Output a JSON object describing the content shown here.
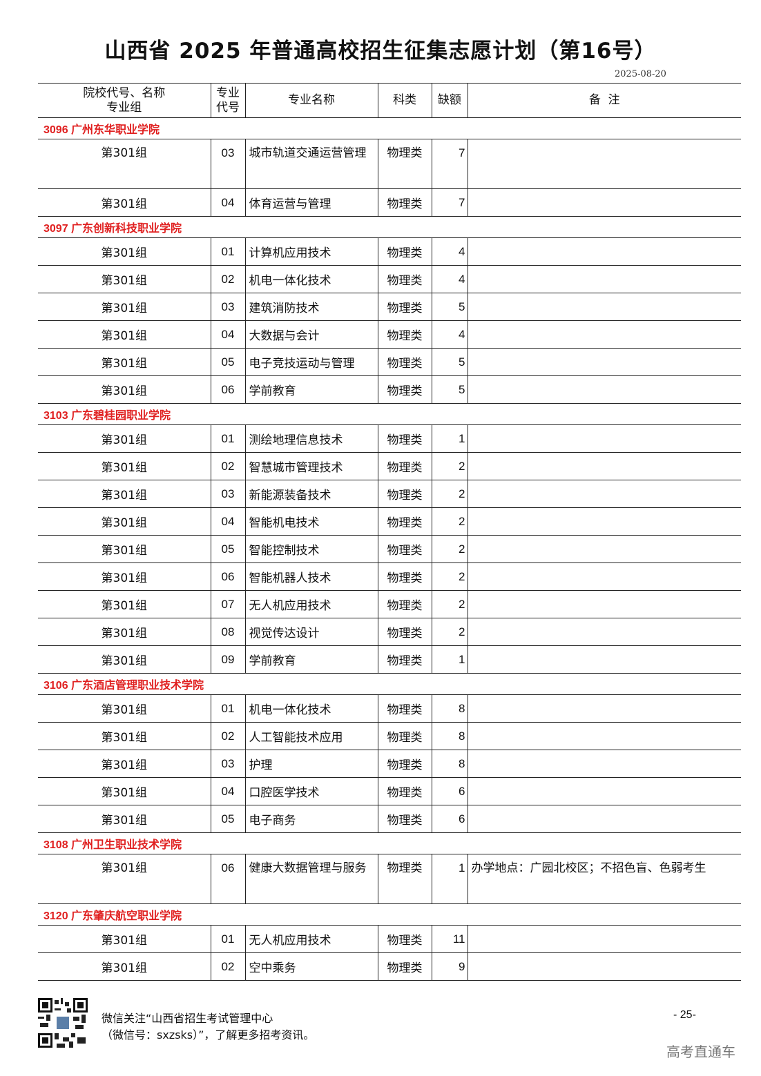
{
  "title": "山西省 2025 年普通高校招生征集志愿计划（第16号）",
  "date": "2025-08-20",
  "headers": {
    "group": "院校代号、名称",
    "group2": "专业组",
    "code": "专业",
    "code2": "代号",
    "name": "专业名称",
    "type": "科类",
    "count": "缺额",
    "note": "备  注"
  },
  "schools": [
    {
      "label": "3096  广州东华职业学院",
      "rows": [
        {
          "group": "第301组",
          "code": "03",
          "name": "城市轨道交通运营管理",
          "type": "物理类",
          "count": "7",
          "note": "",
          "tall": true
        },
        {
          "group": "第301组",
          "code": "04",
          "name": "体育运营与管理",
          "type": "物理类",
          "count": "7",
          "note": ""
        }
      ]
    },
    {
      "label": "3097  广东创新科技职业学院",
      "rows": [
        {
          "group": "第301组",
          "code": "01",
          "name": "计算机应用技术",
          "type": "物理类",
          "count": "4",
          "note": ""
        },
        {
          "group": "第301组",
          "code": "02",
          "name": "机电一体化技术",
          "type": "物理类",
          "count": "4",
          "note": ""
        },
        {
          "group": "第301组",
          "code": "03",
          "name": "建筑消防技术",
          "type": "物理类",
          "count": "5",
          "note": ""
        },
        {
          "group": "第301组",
          "code": "04",
          "name": "大数据与会计",
          "type": "物理类",
          "count": "4",
          "note": ""
        },
        {
          "group": "第301组",
          "code": "05",
          "name": "电子竞技运动与管理",
          "type": "物理类",
          "count": "5",
          "note": ""
        },
        {
          "group": "第301组",
          "code": "06",
          "name": "学前教育",
          "type": "物理类",
          "count": "5",
          "note": ""
        }
      ]
    },
    {
      "label": "3103  广东碧桂园职业学院",
      "rows": [
        {
          "group": "第301组",
          "code": "01",
          "name": "测绘地理信息技术",
          "type": "物理类",
          "count": "1",
          "note": ""
        },
        {
          "group": "第301组",
          "code": "02",
          "name": "智慧城市管理技术",
          "type": "物理类",
          "count": "2",
          "note": ""
        },
        {
          "group": "第301组",
          "code": "03",
          "name": "新能源装备技术",
          "type": "物理类",
          "count": "2",
          "note": ""
        },
        {
          "group": "第301组",
          "code": "04",
          "name": "智能机电技术",
          "type": "物理类",
          "count": "2",
          "note": ""
        },
        {
          "group": "第301组",
          "code": "05",
          "name": "智能控制技术",
          "type": "物理类",
          "count": "2",
          "note": ""
        },
        {
          "group": "第301组",
          "code": "06",
          "name": "智能机器人技术",
          "type": "物理类",
          "count": "2",
          "note": ""
        },
        {
          "group": "第301组",
          "code": "07",
          "name": "无人机应用技术",
          "type": "物理类",
          "count": "2",
          "note": ""
        },
        {
          "group": "第301组",
          "code": "08",
          "name": "视觉传达设计",
          "type": "物理类",
          "count": "2",
          "note": ""
        },
        {
          "group": "第301组",
          "code": "09",
          "name": "学前教育",
          "type": "物理类",
          "count": "1",
          "note": ""
        }
      ]
    },
    {
      "label": "3106  广东酒店管理职业技术学院",
      "rows": [
        {
          "group": "第301组",
          "code": "01",
          "name": "机电一体化技术",
          "type": "物理类",
          "count": "8",
          "note": ""
        },
        {
          "group": "第301组",
          "code": "02",
          "name": "人工智能技术应用",
          "type": "物理类",
          "count": "8",
          "note": ""
        },
        {
          "group": "第301组",
          "code": "03",
          "name": "护理",
          "type": "物理类",
          "count": "8",
          "note": ""
        },
        {
          "group": "第301组",
          "code": "04",
          "name": "口腔医学技术",
          "type": "物理类",
          "count": "6",
          "note": ""
        },
        {
          "group": "第301组",
          "code": "05",
          "name": "电子商务",
          "type": "物理类",
          "count": "6",
          "note": ""
        }
      ]
    },
    {
      "label": "3108  广州卫生职业技术学院",
      "rows": [
        {
          "group": "第301组",
          "code": "06",
          "name": "健康大数据管理与服务",
          "type": "物理类",
          "count": "1",
          "note": "办学地点：广园北校区；不招色盲、色弱考生",
          "tall": true
        }
      ]
    },
    {
      "label": "3120  广东肇庆航空职业学院",
      "rows": [
        {
          "group": "第301组",
          "code": "01",
          "name": "无人机应用技术",
          "type": "物理类",
          "count": "11",
          "note": ""
        },
        {
          "group": "第301组",
          "code": "02",
          "name": "空中乘务",
          "type": "物理类",
          "count": "9",
          "note": ""
        }
      ]
    }
  ],
  "footer": {
    "line1": "微信关注“山西省招生考试管理中心",
    "line2": "（微信号：sxzsks）”，了解更多招考资讯。",
    "page": "- 25-",
    "watermark": "高考直通车",
    "qr_icon": "qr-code-icon"
  }
}
